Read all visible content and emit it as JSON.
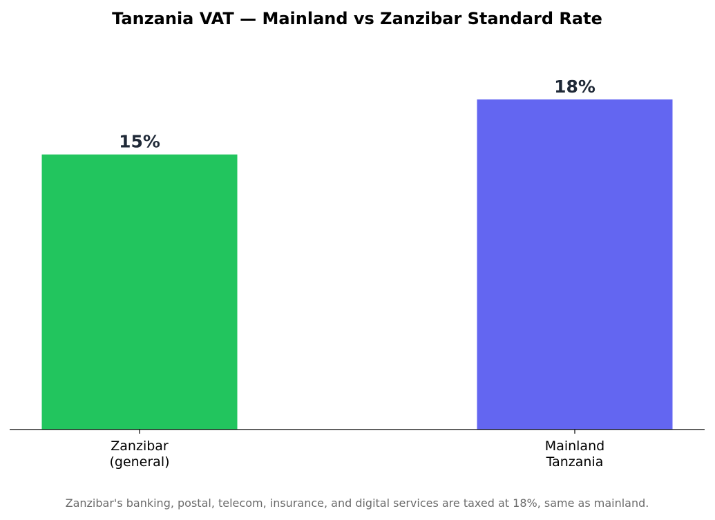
{
  "chart_data": {
    "type": "bar",
    "title": "Tanzania VAT — Mainland vs Zanzibar Standard Rate",
    "categories": [
      [
        "Zanzibar",
        "(general)"
      ],
      [
        "Mainland",
        "Tanzania"
      ]
    ],
    "values": [
      15,
      18
    ],
    "value_labels": [
      "15%",
      "18%"
    ],
    "colors": [
      "#22c55e",
      "#6366f1"
    ],
    "value_label_color": "#1f2937",
    "xlabel": "",
    "ylabel": "",
    "ylim": [
      0,
      20
    ],
    "grid": false,
    "legend": "none",
    "footnote": "Zanzibar's banking, postal, telecom, insurance, and digital services are taxed at 18%, same as mainland."
  }
}
